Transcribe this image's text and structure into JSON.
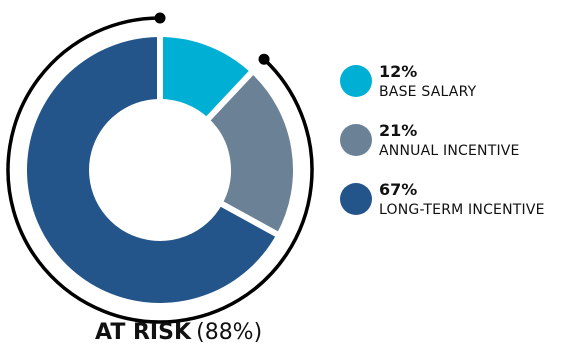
{
  "chart_data": {
    "type": "pie",
    "style": "donut",
    "slices": [
      {
        "value": 12,
        "pct_label": "12%",
        "label": "BASE SALARY",
        "color": "#00b0d4"
      },
      {
        "value": 21,
        "pct_label": "21%",
        "label": "ANNUAL INCENTIVE",
        "color": "#6b8195"
      },
      {
        "value": 67,
        "pct_label": "67%",
        "label": "LONG-TERM INCENTIVE",
        "color": "#23558a"
      }
    ],
    "bracket": {
      "title": "AT RISK",
      "value_label": "(88%)",
      "value": 88,
      "covers": [
        "ANNUAL INCENTIVE",
        "LONG-TERM INCENTIVE"
      ]
    },
    "legend_position": "right"
  }
}
